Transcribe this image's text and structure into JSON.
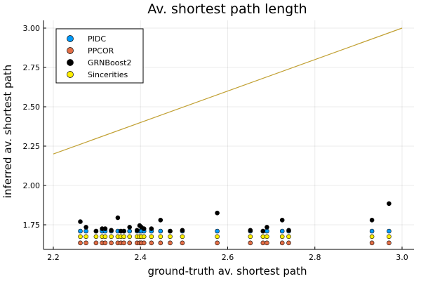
{
  "chart_data": {
    "type": "scatter",
    "title": "Av. shortest path length",
    "xlabel": "ground-truth av. shortest path",
    "ylabel": "inferred av. shortest path",
    "xlim": [
      2.2,
      3.0
    ],
    "ylim": [
      1.6,
      3.0
    ],
    "xticks": [
      "2.2",
      "2.4",
      "2.6",
      "2.8",
      "3.0"
    ],
    "yticks": [
      "1.75",
      "2.00",
      "2.25",
      "2.50",
      "2.75",
      "3.00"
    ],
    "grid": true,
    "legend_position": "top-left",
    "x": [
      2.262,
      2.275,
      2.298,
      2.312,
      2.319,
      2.333,
      2.348,
      2.355,
      2.362,
      2.375,
      2.392,
      2.398,
      2.402,
      2.408,
      2.425,
      2.446,
      2.468,
      2.496,
      2.576,
      2.652,
      2.681,
      2.69,
      2.725,
      2.74,
      2.931,
      2.97
    ],
    "series": [
      {
        "name": "PIDC",
        "color": "#009AFA",
        "values": [
          1.71,
          1.71,
          1.71,
          1.71,
          1.71,
          1.71,
          1.71,
          1.71,
          1.71,
          1.71,
          1.71,
          1.71,
          1.71,
          1.71,
          1.71,
          1.71,
          1.71,
          1.71,
          1.71,
          1.71,
          1.71,
          1.71,
          1.71,
          1.71,
          1.71,
          1.71
        ]
      },
      {
        "name": "PPCOR",
        "color": "#E36F47",
        "values": [
          1.635,
          1.635,
          1.635,
          1.635,
          1.635,
          1.635,
          1.635,
          1.635,
          1.635,
          1.635,
          1.635,
          1.635,
          1.635,
          1.635,
          1.635,
          1.635,
          1.635,
          1.635,
          1.635,
          1.635,
          1.635,
          1.635,
          1.635,
          1.635,
          1.635,
          1.635
        ]
      },
      {
        "name": "GRNBoost2",
        "color": "#000000",
        "values": [
          1.77,
          1.735,
          1.71,
          1.725,
          1.725,
          1.715,
          1.795,
          1.71,
          1.71,
          1.735,
          1.715,
          1.745,
          1.735,
          1.725,
          1.725,
          1.78,
          1.71,
          1.715,
          1.825,
          1.715,
          1.71,
          1.735,
          1.78,
          1.715,
          1.78,
          1.885
        ]
      },
      {
        "name": "Sincerities",
        "color": "#FFEF00",
        "values": [
          1.675,
          1.675,
          1.675,
          1.675,
          1.675,
          1.675,
          1.675,
          1.675,
          1.675,
          1.675,
          1.675,
          1.675,
          1.675,
          1.675,
          1.675,
          1.675,
          1.675,
          1.675,
          1.675,
          1.675,
          1.675,
          1.675,
          1.675,
          1.675,
          1.675,
          1.675
        ]
      }
    ],
    "reference_line": {
      "x": [
        2.2,
        3.0
      ],
      "y": [
        2.2,
        3.0
      ],
      "color": "#C1A032"
    }
  }
}
